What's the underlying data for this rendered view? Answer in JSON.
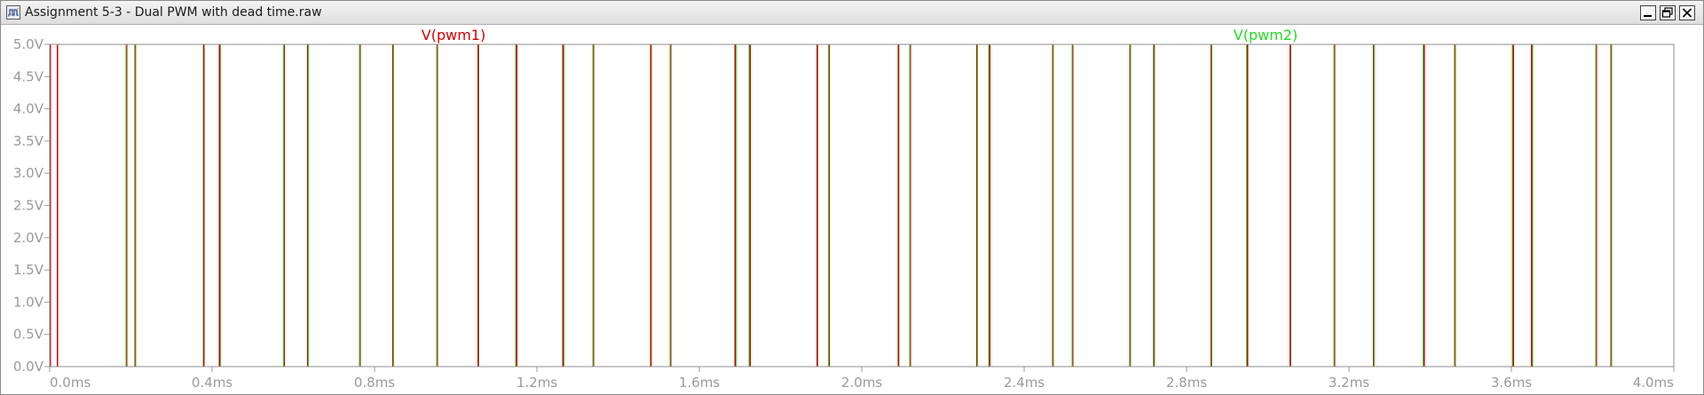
{
  "window": {
    "title": "Assignment 5-3 - Dual PWM with dead time.raw",
    "icons": {
      "app": "waveform-viewer-icon",
      "minimize": "minimize-icon",
      "maximize": "maximize-icon",
      "close": "close-icon"
    }
  },
  "chart_data": {
    "type": "line",
    "xlabel": "",
    "ylabel": "",
    "x_unit": "ms",
    "xlim": [
      0.0,
      4.0
    ],
    "ylim": [
      0.0,
      5.0
    ],
    "x_ticks": [
      "0.0ms",
      "0.4ms",
      "0.8ms",
      "1.2ms",
      "1.6ms",
      "2.0ms",
      "2.4ms",
      "2.8ms",
      "3.2ms",
      "3.6ms",
      "4.0ms"
    ],
    "x_tick_values": [
      0.0,
      0.4,
      0.8,
      1.2,
      1.6,
      2.0,
      2.4,
      2.8,
      3.2,
      3.6,
      4.0
    ],
    "y_ticks": [
      "0.0V",
      "0.5V",
      "1.0V",
      "1.5V",
      "2.0V",
      "2.5V",
      "3.0V",
      "3.5V",
      "4.0V",
      "4.5V",
      "5.0V"
    ],
    "y_tick_values": [
      0.0,
      0.5,
      1.0,
      1.5,
      2.0,
      2.5,
      3.0,
      3.5,
      4.0,
      4.5,
      5.0
    ],
    "grid": false,
    "legend_placement": "top",
    "series": [
      {
        "name": "V(pwm1)",
        "color": "#d40000",
        "low": 0.0,
        "high": 5.0,
        "high_intervals": [
          [
            0.002,
            0.019
          ],
          [
            0.19,
            0.21
          ],
          [
            0.38,
            0.418
          ],
          [
            0.578,
            0.635
          ],
          [
            0.765,
            0.845
          ],
          [
            0.955,
            1.055
          ],
          [
            1.15,
            1.264
          ],
          [
            1.34,
            1.48
          ],
          [
            1.53,
            1.688
          ],
          [
            1.725,
            1.89
          ],
          [
            1.92,
            2.09
          ],
          [
            2.12,
            2.283
          ],
          [
            2.315,
            2.47
          ],
          [
            2.52,
            2.66
          ],
          [
            2.72,
            2.86
          ],
          [
            2.95,
            3.055
          ],
          [
            3.165,
            3.26
          ],
          [
            3.385,
            3.46
          ],
          [
            3.605,
            3.65
          ],
          [
            3.81,
            3.845
          ]
        ]
      },
      {
        "name": "V(pwm2)",
        "color": "#22dd22",
        "low": 0.0,
        "high": 5.0,
        "high_intervals": [
          [
            0.0,
            0.188
          ],
          [
            0.212,
            0.378
          ],
          [
            0.42,
            0.576
          ],
          [
            0.637,
            0.763
          ],
          [
            0.847,
            0.953
          ],
          [
            1.057,
            1.148
          ],
          [
            1.266,
            1.338
          ],
          [
            1.482,
            1.528
          ],
          [
            1.69,
            1.723
          ],
          [
            1.892,
            1.918
          ],
          [
            2.092,
            2.118
          ],
          [
            2.285,
            2.313
          ],
          [
            2.472,
            2.518
          ],
          [
            2.662,
            2.718
          ],
          [
            2.862,
            2.948
          ],
          [
            3.057,
            3.163
          ],
          [
            3.262,
            3.383
          ],
          [
            3.462,
            3.603
          ],
          [
            3.652,
            3.808
          ],
          [
            3.847,
            4.0
          ]
        ]
      }
    ]
  }
}
